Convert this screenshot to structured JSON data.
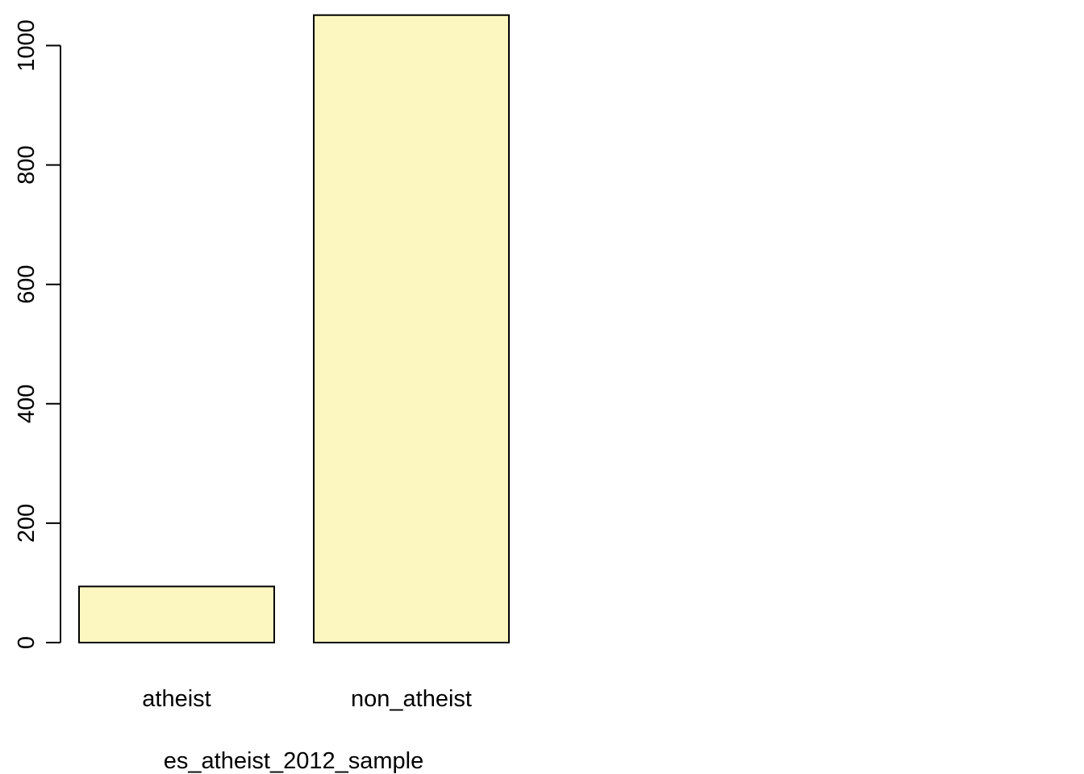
{
  "chart_data": {
    "type": "bar",
    "title": "",
    "xlabel": "es_atheist_2012_sample",
    "ylabel": "",
    "categories": [
      "atheist",
      "non_atheist"
    ],
    "values": [
      94,
      1051
    ],
    "yticks": [
      0,
      200,
      400,
      600,
      800,
      1000
    ],
    "ylim": [
      0,
      1051
    ],
    "bar_color": "#FCF6C0",
    "border_color": "#000000",
    "grid": false,
    "legend": "none"
  }
}
